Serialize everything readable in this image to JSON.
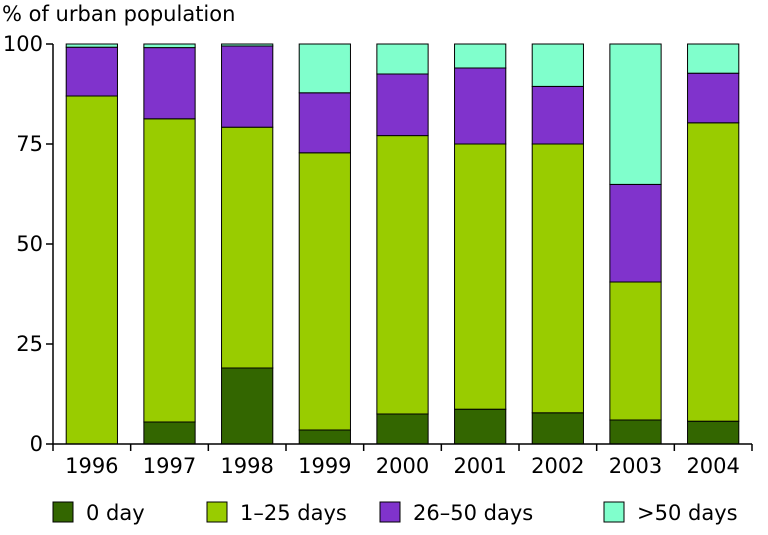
{
  "chart_data": {
    "type": "bar",
    "stacked": true,
    "ylabel": "% of urban population",
    "xlabel": "",
    "ylim": [
      0,
      100
    ],
    "yticks": [
      "0",
      "25",
      "50",
      "75",
      "100"
    ],
    "grid": false,
    "legend_position": "bottom",
    "categories": [
      "1996",
      "1997",
      "1998",
      "1999",
      "2000",
      "2001",
      "2002",
      "2003",
      "2004"
    ],
    "series": [
      {
        "name": "0 day",
        "color": "#336600",
        "values": [
          0,
          5.5,
          19,
          3.5,
          7.5,
          8.7,
          7.8,
          6,
          5.7
        ]
      },
      {
        "name": "1–25 days",
        "color": "#99cc00",
        "values": [
          87,
          75.8,
          60.2,
          69.3,
          69.6,
          66.3,
          67.2,
          34.5,
          74.6
        ]
      },
      {
        "name": "26–50 days",
        "color": "#8033cc",
        "values": [
          12.2,
          17.8,
          20.3,
          15,
          15.4,
          19,
          14.4,
          24.4,
          12.4
        ]
      },
      {
        "name": ">50 days",
        "color": "#80ffcc",
        "values": [
          0.8,
          0.9,
          0.5,
          12.2,
          7.5,
          6,
          10.6,
          35.1,
          7.3
        ]
      }
    ]
  }
}
